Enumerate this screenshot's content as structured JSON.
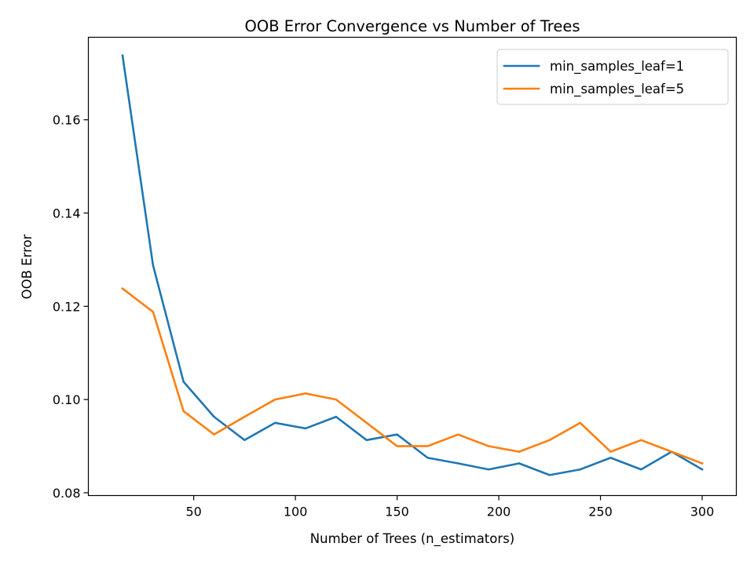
{
  "chart_data": {
    "type": "line",
    "title": "OOB Error Convergence vs Number of Trees",
    "xlabel": "Number of Trees (n_estimators)",
    "ylabel": "OOB Error",
    "xlim": [
      -1.8,
      316.8
    ],
    "ylim": [
      0.0794,
      0.1777
    ],
    "xticks": [
      50,
      100,
      150,
      200,
      250,
      300
    ],
    "yticks": [
      0.08,
      0.1,
      0.12,
      0.14,
      0.16
    ],
    "xtick_labels": [
      "50",
      "100",
      "150",
      "200",
      "250",
      "300"
    ],
    "ytick_labels": [
      "0.08",
      "0.10",
      "0.12",
      "0.14",
      "0.16"
    ],
    "grid": false,
    "legend_position": "top-right",
    "x": [
      15,
      30,
      45,
      60,
      75,
      90,
      105,
      120,
      135,
      150,
      165,
      180,
      195,
      210,
      225,
      240,
      255,
      270,
      285,
      300
    ],
    "series": [
      {
        "name": "min_samples_leaf=1",
        "color": "#1f77b4",
        "values": [
          0.1738,
          0.1288,
          0.1038,
          0.0963,
          0.0913,
          0.095,
          0.0938,
          0.0963,
          0.0913,
          0.0925,
          0.0875,
          0.0863,
          0.085,
          0.0863,
          0.0838,
          0.085,
          0.0875,
          0.085,
          0.0888,
          0.085
        ]
      },
      {
        "name": "min_samples_leaf=5",
        "color": "#ff7f0e",
        "values": [
          0.1238,
          0.1188,
          0.0975,
          0.0925,
          0.0963,
          0.1,
          0.1013,
          0.1,
          0.095,
          0.09,
          0.09,
          0.0925,
          0.09,
          0.0888,
          0.0913,
          0.095,
          0.0888,
          0.0913,
          0.0888,
          0.0863
        ]
      }
    ]
  }
}
